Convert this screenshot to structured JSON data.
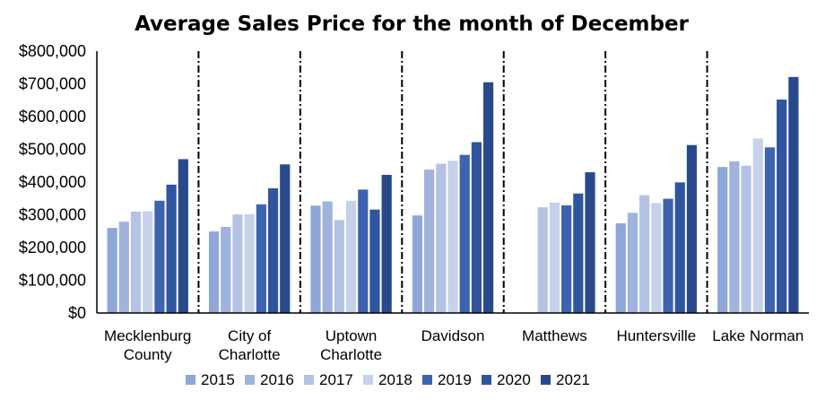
{
  "chart_data": {
    "type": "bar",
    "title": "Average Sales Price for the month of December",
    "xlabel": "",
    "ylabel": "",
    "ylim": [
      0,
      800000
    ],
    "yticks": [
      "$0",
      "$100,000",
      "$200,000",
      "$300,000",
      "$400,000",
      "$500,000",
      "$600,000",
      "$700,000",
      "$800,000"
    ],
    "categories": [
      [
        "Mecklenburg",
        "County"
      ],
      [
        "City of",
        "Charlotte"
      ],
      [
        "Uptown",
        "Charlotte"
      ],
      [
        "Davidson"
      ],
      [
        "Matthews"
      ],
      [
        "Huntersville"
      ],
      [
        "Lake Norman"
      ]
    ],
    "series": [
      {
        "name": "2015",
        "color": "#8FA7D8",
        "values": [
          260000,
          249000,
          328000,
          298000,
          null,
          274000,
          446000
        ]
      },
      {
        "name": "2016",
        "color": "#9FB3DD",
        "values": [
          279000,
          263000,
          341000,
          438000,
          null,
          306000,
          463000
        ]
      },
      {
        "name": "2017",
        "color": "#B4C2E4",
        "values": [
          310000,
          301000,
          284000,
          456000,
          323000,
          360000,
          450000
        ]
      },
      {
        "name": "2018",
        "color": "#C6D1EA",
        "values": [
          311000,
          302000,
          343000,
          465000,
          337000,
          336000,
          533000
        ]
      },
      {
        "name": "2019",
        "color": "#3D63B0",
        "values": [
          343000,
          332000,
          377000,
          483000,
          329000,
          349000,
          506000
        ]
      },
      {
        "name": "2020",
        "color": "#2F559E",
        "values": [
          392000,
          381000,
          316000,
          522000,
          365000,
          399000,
          652000
        ]
      },
      {
        "name": "2021",
        "color": "#284A8C",
        "values": [
          470000,
          454000,
          422000,
          705000,
          430000,
          513000,
          721000
        ]
      }
    ],
    "grid": false,
    "separators": "dash-dot vertical lines between categories",
    "legend_position": "bottom"
  }
}
